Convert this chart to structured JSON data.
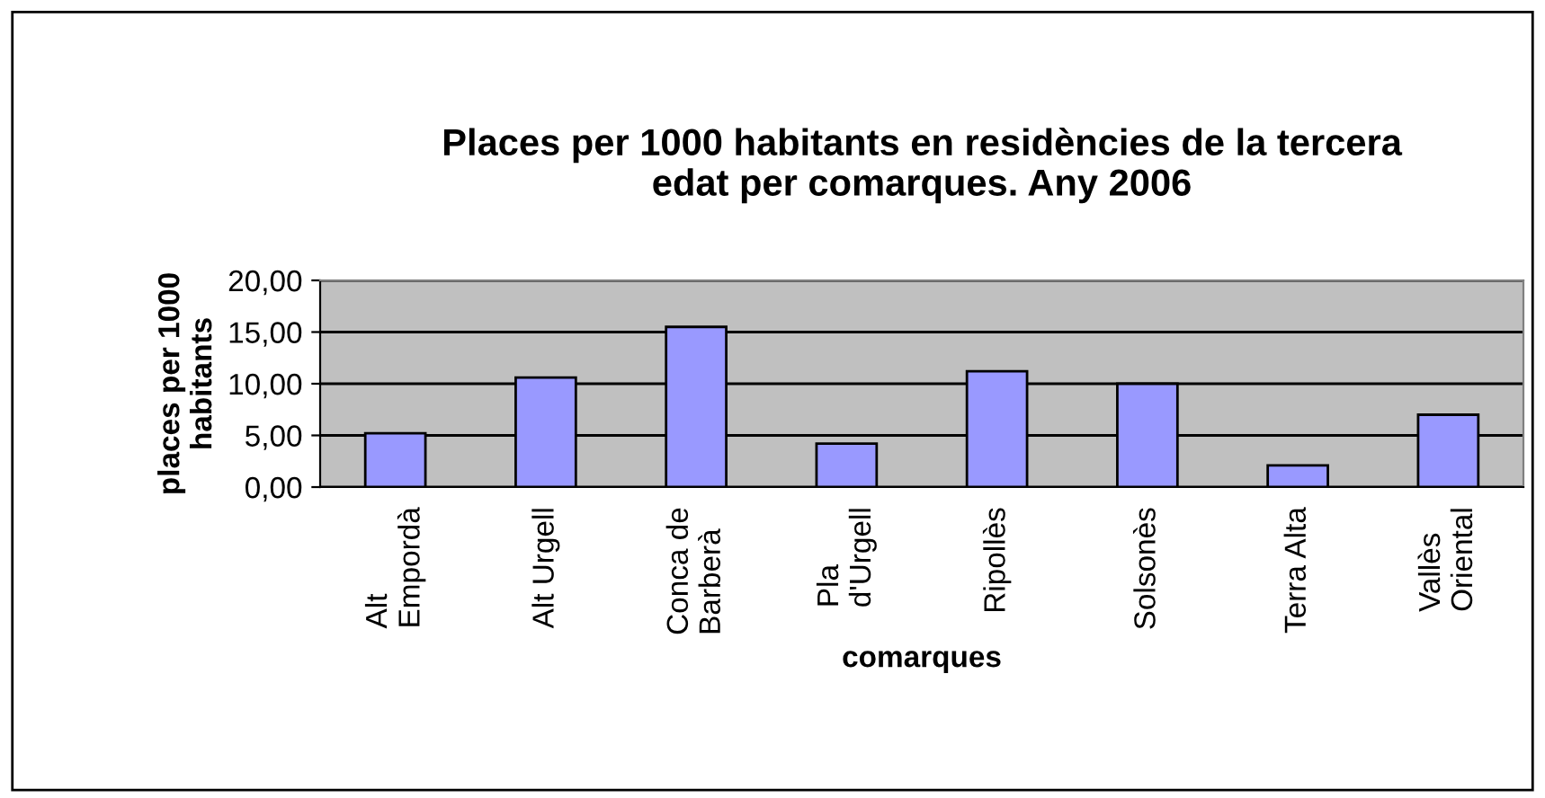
{
  "chart_data": {
    "type": "bar",
    "title": "Places per 1000 habitants en residències de la tercera\nedat per comarques. Any 2006",
    "xlabel": "comarques",
    "ylabel": "places per 1000\nhabitants",
    "categories": [
      "Alt\nEmpordà",
      "Alt Urgell",
      "Conca de\nBarberà",
      "Pla\nd'Urgell",
      "Ripollès",
      "Solsonès",
      "Terra Alta",
      "Vallès\nOriental"
    ],
    "values": [
      5.2,
      10.6,
      15.5,
      4.2,
      11.2,
      10.0,
      2.1,
      7.0
    ],
    "color": "#9999ff",
    "ylim": [
      0,
      20
    ],
    "yticks": [
      {
        "value": 0,
        "label": "0,00"
      },
      {
        "value": 5,
        "label": "5,00"
      },
      {
        "value": 10,
        "label": "10,00"
      },
      {
        "value": 15,
        "label": "15,00"
      },
      {
        "value": 20,
        "label": "20,00"
      }
    ],
    "grid": "y",
    "legend": false
  }
}
